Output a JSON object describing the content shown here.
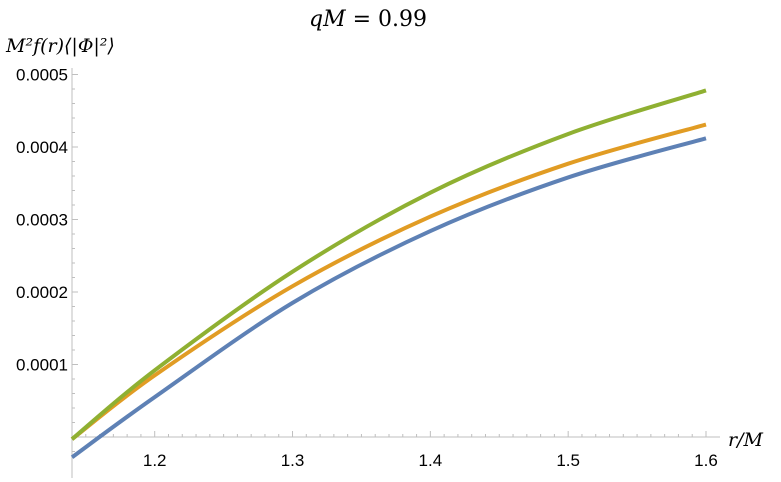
{
  "chart_data": {
    "type": "line",
    "title_lhs": "qM",
    "title_rhs": "0.99",
    "ylabel": "M²f(r)⟨|Φ|²⟩",
    "xlabel": "r/M",
    "xlim": [
      1.14,
      1.6
    ],
    "ylim": [
      -2.5e-05,
      0.0005
    ],
    "xticks": [
      "1.2",
      "1.3",
      "1.4",
      "1.5",
      "1.6"
    ],
    "xtick_values": [
      1.2,
      1.3,
      1.4,
      1.5,
      1.6
    ],
    "yticks": [
      "0.0001",
      "0.0002",
      "0.0003",
      "0.0004",
      "0.0005"
    ],
    "ytick_values": [
      0.0001,
      0.0002,
      0.0003,
      0.0004,
      0.0005
    ],
    "axis_color": "#bfbfbf",
    "grid": false,
    "series": [
      {
        "color": "#5e81b5",
        "x": [
          1.14,
          1.2,
          1.3,
          1.4,
          1.5,
          1.6
        ],
        "y": [
          -2.8e-05,
          5.5e-05,
          0.000185,
          0.000284,
          0.000358,
          0.000412
        ]
      },
      {
        "color": "#e19c24",
        "x": [
          1.14,
          1.2,
          1.3,
          1.4,
          1.5,
          1.6
        ],
        "y": [
          -3e-06,
          8.5e-05,
          0.000208,
          0.000304,
          0.000377,
          0.000431
        ]
      },
      {
        "color": "#8fb032",
        "x": [
          1.14,
          1.2,
          1.3,
          1.4,
          1.5,
          1.6
        ],
        "y": [
          -3e-06,
          9.2e-05,
          0.000228,
          0.000337,
          0.000418,
          0.000478
        ]
      }
    ]
  }
}
